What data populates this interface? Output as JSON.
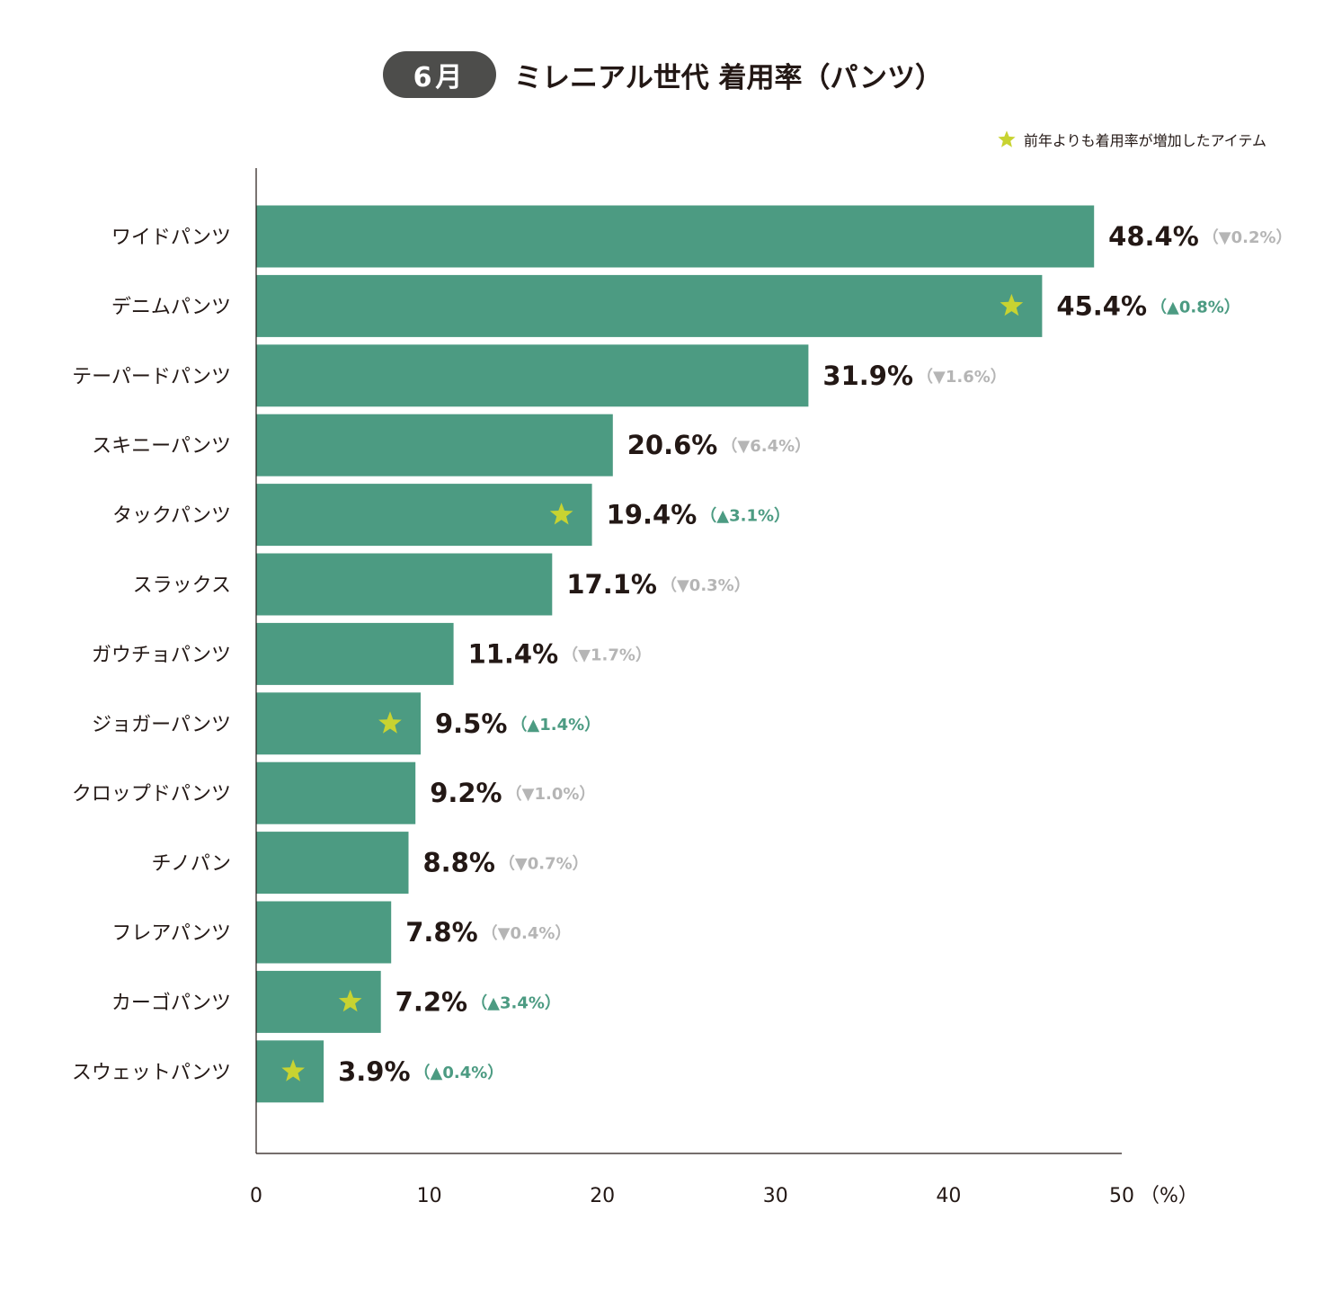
{
  "header": {
    "month": "6月",
    "title": "ミレニアル世代 着用率（パンツ）"
  },
  "legend": {
    "label": "前年よりも着用率が増加したアイテム"
  },
  "colors": {
    "bar": "#4c9b82",
    "star": "#c8d331",
    "up": "#4c9b82",
    "down": "#b5b5b5",
    "text": "#231815"
  },
  "chart_data": {
    "type": "bar",
    "orientation": "horizontal",
    "title": "ミレニアル世代 着用率（パンツ）",
    "xlabel": "(%)",
    "xlim": [
      0,
      50
    ],
    "xticks": [
      0,
      10,
      20,
      30,
      40,
      50
    ],
    "xtick_labels": [
      "0",
      "10",
      "20",
      "30",
      "40",
      "50"
    ],
    "unit_label": "（%）",
    "categories": [
      "ワイドパンツ",
      "デニムパンツ",
      "テーパードパンツ",
      "スキニーパンツ",
      "タックパンツ",
      "スラックス",
      "ガウチョパンツ",
      "ジョガーパンツ",
      "クロップドパンツ",
      "チノパン",
      "フレアパンツ",
      "カーゴパンツ",
      "スウェットパンツ"
    ],
    "values": [
      48.4,
      45.4,
      31.9,
      20.6,
      19.4,
      17.1,
      11.4,
      9.5,
      9.2,
      8.8,
      7.8,
      7.2,
      3.9
    ],
    "value_labels": [
      "48.4%",
      "45.4%",
      "31.9%",
      "20.6%",
      "19.4%",
      "17.1%",
      "11.4%",
      "9.5%",
      "9.2%",
      "8.8%",
      "7.8%",
      "7.2%",
      "3.9%"
    ],
    "change": [
      -0.2,
      0.8,
      -1.6,
      -6.4,
      3.1,
      -0.3,
      -1.7,
      1.4,
      -1.0,
      -0.7,
      -0.4,
      3.4,
      0.4
    ],
    "change_labels": [
      "（▼0.2%）",
      "（▲0.8%）",
      "（▼1.6%）",
      "（▼6.4%）",
      "（▲3.1%）",
      "（▼0.3%）",
      "（▼1.7%）",
      "（▲1.4%）",
      "（▼1.0%）",
      "（▼0.7%）",
      "（▼0.4%）",
      "（▲3.4%）",
      "（▲0.4%）"
    ],
    "increased": [
      false,
      true,
      false,
      false,
      true,
      false,
      false,
      true,
      false,
      false,
      false,
      true,
      true
    ]
  }
}
